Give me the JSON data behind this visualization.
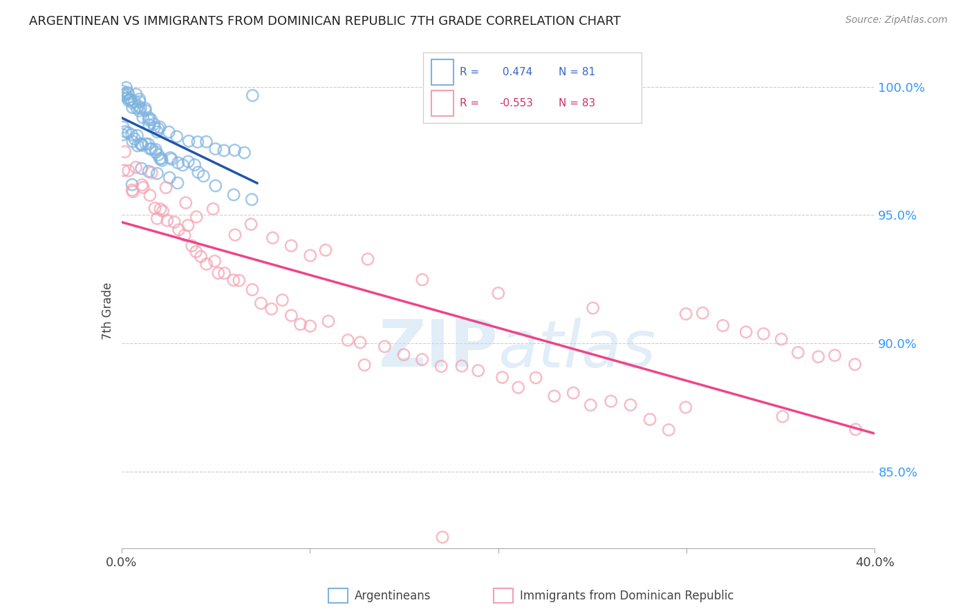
{
  "title": "ARGENTINEAN VS IMMIGRANTS FROM DOMINICAN REPUBLIC 7TH GRADE CORRELATION CHART",
  "source": "Source: ZipAtlas.com",
  "ylabel": "7th Grade",
  "legend_blue_r": "0.474",
  "legend_blue_n": "81",
  "legend_pink_r": "-0.553",
  "legend_pink_n": "83",
  "blue_color": "#7EB3E0",
  "pink_color": "#F4A0B0",
  "blue_line_color": "#2255AA",
  "pink_line_color": "#EE4488",
  "watermark": "ZIPatlas",
  "xlim": [
    0.0,
    0.4
  ],
  "ylim": [
    0.82,
    1.005
  ],
  "yticks": [
    1.0,
    0.95,
    0.9,
    0.85
  ],
  "ytick_labels": [
    "100.0%",
    "95.0%",
    "90.0%",
    "85.0%"
  ],
  "xticks": [
    0.0,
    0.1,
    0.2,
    0.3,
    0.4
  ],
  "xtick_labels": [
    "0.0%",
    "",
    "",
    "",
    "40.0%"
  ],
  "background_color": "#FFFFFF",
  "grid_color": "#CCCCCC",
  "blue_x": [
    0.001,
    0.002,
    0.003,
    0.004,
    0.005,
    0.006,
    0.007,
    0.008,
    0.009,
    0.01,
    0.001,
    0.002,
    0.003,
    0.004,
    0.005,
    0.006,
    0.007,
    0.008,
    0.009,
    0.01,
    0.011,
    0.012,
    0.013,
    0.014,
    0.015,
    0.016,
    0.017,
    0.018,
    0.019,
    0.02,
    0.001,
    0.002,
    0.003,
    0.004,
    0.005,
    0.006,
    0.007,
    0.008,
    0.009,
    0.01,
    0.011,
    0.012,
    0.013,
    0.014,
    0.015,
    0.016,
    0.017,
    0.018,
    0.019,
    0.02,
    0.021,
    0.022,
    0.025,
    0.027,
    0.03,
    0.032,
    0.035,
    0.038,
    0.04,
    0.043,
    0.015,
    0.02,
    0.025,
    0.03,
    0.035,
    0.04,
    0.045,
    0.05,
    0.055,
    0.06,
    0.065,
    0.07,
    0.01,
    0.015,
    0.02,
    0.025,
    0.03,
    0.05,
    0.06,
    0.07,
    0.005
  ],
  "blue_y": [
    0.999,
    0.998,
    0.997,
    0.996,
    0.996,
    0.995,
    0.995,
    0.995,
    0.994,
    0.994,
    0.998,
    0.997,
    0.996,
    0.995,
    0.994,
    0.993,
    0.993,
    0.992,
    0.991,
    0.991,
    0.99,
    0.99,
    0.989,
    0.988,
    0.987,
    0.987,
    0.986,
    0.985,
    0.984,
    0.984,
    0.983,
    0.982,
    0.982,
    0.981,
    0.981,
    0.98,
    0.98,
    0.979,
    0.979,
    0.978,
    0.978,
    0.977,
    0.977,
    0.976,
    0.976,
    0.975,
    0.975,
    0.974,
    0.974,
    0.973,
    0.973,
    0.972,
    0.972,
    0.971,
    0.97,
    0.97,
    0.969,
    0.968,
    0.967,
    0.966,
    0.985,
    0.983,
    0.982,
    0.98,
    0.979,
    0.978,
    0.977,
    0.976,
    0.975,
    0.975,
    0.974,
    0.998,
    0.97,
    0.968,
    0.966,
    0.964,
    0.963,
    0.96,
    0.958,
    0.956,
    0.962
  ],
  "pink_x": [
    0.001,
    0.003,
    0.005,
    0.007,
    0.01,
    0.012,
    0.015,
    0.018,
    0.02,
    0.022,
    0.025,
    0.028,
    0.03,
    0.032,
    0.035,
    0.038,
    0.04,
    0.042,
    0.045,
    0.048,
    0.05,
    0.055,
    0.06,
    0.065,
    0.07,
    0.075,
    0.08,
    0.085,
    0.09,
    0.095,
    0.1,
    0.11,
    0.12,
    0.13,
    0.14,
    0.15,
    0.16,
    0.17,
    0.18,
    0.19,
    0.2,
    0.21,
    0.22,
    0.23,
    0.24,
    0.25,
    0.26,
    0.27,
    0.28,
    0.29,
    0.3,
    0.31,
    0.32,
    0.33,
    0.34,
    0.35,
    0.36,
    0.37,
    0.38,
    0.39,
    0.002,
    0.008,
    0.015,
    0.025,
    0.035,
    0.05,
    0.07,
    0.09,
    0.11,
    0.13,
    0.16,
    0.2,
    0.25,
    0.3,
    0.35,
    0.39,
    0.02,
    0.04,
    0.06,
    0.08,
    0.1,
    0.13,
    0.17
  ],
  "pink_y": [
    0.968,
    0.966,
    0.964,
    0.962,
    0.96,
    0.958,
    0.956,
    0.954,
    0.952,
    0.95,
    0.948,
    0.946,
    0.944,
    0.942,
    0.94,
    0.938,
    0.936,
    0.934,
    0.932,
    0.93,
    0.928,
    0.926,
    0.924,
    0.922,
    0.92,
    0.918,
    0.916,
    0.914,
    0.912,
    0.91,
    0.908,
    0.906,
    0.904,
    0.902,
    0.9,
    0.898,
    0.896,
    0.894,
    0.892,
    0.89,
    0.888,
    0.886,
    0.884,
    0.882,
    0.88,
    0.878,
    0.876,
    0.874,
    0.872,
    0.87,
    0.91,
    0.908,
    0.906,
    0.904,
    0.902,
    0.9,
    0.898,
    0.896,
    0.894,
    0.892,
    0.972,
    0.97,
    0.965,
    0.96,
    0.955,
    0.95,
    0.945,
    0.94,
    0.935,
    0.93,
    0.925,
    0.92,
    0.915,
    0.875,
    0.87,
    0.868,
    0.955,
    0.95,
    0.945,
    0.94,
    0.935,
    0.895,
    0.825
  ]
}
